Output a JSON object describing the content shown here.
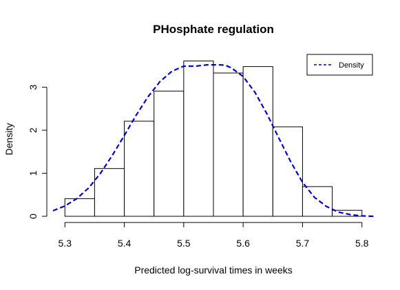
{
  "chart_data": {
    "type": "bar",
    "title": "PHosphate regulation",
    "xlabel": "Predicted log-survival times in weeks",
    "ylabel": "Density",
    "xlim": [
      5.28,
      5.82
    ],
    "ylim": [
      0,
      3.65
    ],
    "xticks": [
      5.3,
      5.4,
      5.5,
      5.6,
      5.7,
      5.8
    ],
    "xtick_labels": [
      "5.3",
      "5.4",
      "5.5",
      "5.6",
      "5.7",
      "5.8"
    ],
    "yticks": [
      0,
      1,
      2,
      3
    ],
    "ytick_labels": [
      "0",
      "1",
      "2",
      "3"
    ],
    "bins": [
      {
        "x0": 5.3,
        "x1": 5.35,
        "density": 0.41
      },
      {
        "x0": 5.35,
        "x1": 5.4,
        "density": 1.11
      },
      {
        "x0": 5.4,
        "x1": 5.45,
        "density": 2.21
      },
      {
        "x0": 5.45,
        "x1": 5.5,
        "density": 2.91
      },
      {
        "x0": 5.5,
        "x1": 5.55,
        "density": 3.61
      },
      {
        "x0": 5.55,
        "x1": 5.6,
        "density": 3.33
      },
      {
        "x0": 5.6,
        "x1": 5.65,
        "density": 3.48
      },
      {
        "x0": 5.65,
        "x1": 5.7,
        "density": 2.08
      },
      {
        "x0": 5.7,
        "x1": 5.75,
        "density": 0.69
      },
      {
        "x0": 5.75,
        "x1": 5.8,
        "density": 0.14
      }
    ],
    "series": [
      {
        "name": "Density",
        "type": "line",
        "style": "dashed",
        "color": "#0000cc",
        "x": [
          5.28,
          5.3,
          5.32,
          5.34,
          5.36,
          5.38,
          5.4,
          5.42,
          5.44,
          5.46,
          5.48,
          5.5,
          5.52,
          5.54,
          5.56,
          5.57,
          5.58,
          5.6,
          5.62,
          5.64,
          5.66,
          5.68,
          5.7,
          5.72,
          5.74,
          5.76,
          5.78,
          5.8,
          5.82
        ],
        "y": [
          0.13,
          0.24,
          0.41,
          0.66,
          1.0,
          1.42,
          1.88,
          2.35,
          2.78,
          3.13,
          3.37,
          3.49,
          3.49,
          3.52,
          3.52,
          3.51,
          3.45,
          3.25,
          2.88,
          2.38,
          1.82,
          1.27,
          0.79,
          0.44,
          0.23,
          0.1,
          0.04,
          0.01,
          0.0
        ]
      }
    ],
    "legend": {
      "position": "top-right",
      "entries": [
        "Density"
      ]
    },
    "grid": false
  }
}
